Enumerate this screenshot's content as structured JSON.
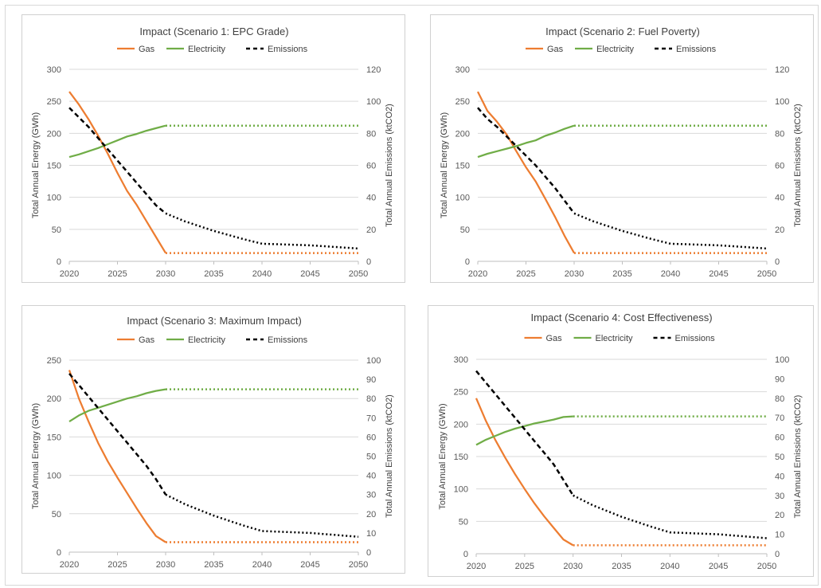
{
  "colors": {
    "gas": "#ED7D31",
    "electricity": "#70AD47",
    "emissions": "#000000",
    "gridline": "#d9d9d9"
  },
  "chart_data": [
    {
      "type": "line",
      "title": "Impact (Scenario 1: EPC Grade)",
      "xlabel": "",
      "ylabel": "Total Annual Energy (GWh)",
      "y2label": "Total Annual Emissions (ktCO2)",
      "xlim": [
        2020,
        2050
      ],
      "xticks": [
        2020,
        2025,
        2030,
        2035,
        2040,
        2045,
        2050
      ],
      "ylim": [
        0,
        300
      ],
      "yticks": [
        0,
        50,
        100,
        150,
        200,
        250,
        300
      ],
      "y2lim": [
        0,
        120
      ],
      "y2ticks": [
        0,
        20,
        40,
        60,
        80,
        100,
        120
      ],
      "legend_position": "top",
      "grid": "horizontal",
      "series": [
        {
          "name": "Gas",
          "axis": "left",
          "color": "#ED7D31",
          "style": "solid-then-dotted",
          "x": [
            2020,
            2021,
            2022,
            2023,
            2024,
            2025,
            2026,
            2027,
            2028,
            2029,
            2030,
            2035,
            2040,
            2045,
            2050
          ],
          "y": [
            265,
            245,
            222,
            196,
            168,
            138,
            110,
            88,
            63,
            38,
            13,
            13,
            13,
            13,
            13
          ]
        },
        {
          "name": "Electricity",
          "axis": "left",
          "color": "#70AD47",
          "style": "solid-then-dotted",
          "x": [
            2020,
            2021,
            2022,
            2023,
            2024,
            2025,
            2026,
            2027,
            2028,
            2029,
            2030,
            2035,
            2040,
            2045,
            2050
          ],
          "y": [
            163,
            167,
            172,
            177,
            183,
            189,
            195,
            199,
            204,
            208,
            212,
            212,
            212,
            212,
            212
          ]
        },
        {
          "name": "Emissions",
          "axis": "right",
          "color": "#000000",
          "style": "dashed-then-dotted",
          "x": [
            2020,
            2021,
            2022,
            2023,
            2024,
            2025,
            2026,
            2027,
            2028,
            2029,
            2030,
            2032,
            2035,
            2038,
            2040,
            2045,
            2050
          ],
          "y": [
            96,
            90,
            84,
            77,
            70,
            63,
            56,
            49,
            42,
            35,
            30,
            25,
            19,
            14,
            11,
            10,
            8
          ]
        }
      ]
    },
    {
      "type": "line",
      "title": "Impact (Scenario 2: Fuel Poverty)",
      "xlabel": "",
      "ylabel": "Total Annual Energy (GWh)",
      "y2label": "Total Annual Emissions (ktCO2)",
      "xlim": [
        2020,
        2050
      ],
      "xticks": [
        2020,
        2025,
        2030,
        2035,
        2040,
        2045,
        2050
      ],
      "ylim": [
        0,
        300
      ],
      "yticks": [
        0,
        50,
        100,
        150,
        200,
        250,
        300
      ],
      "y2lim": [
        0,
        120
      ],
      "y2ticks": [
        0,
        20,
        40,
        60,
        80,
        100,
        120
      ],
      "legend_position": "top",
      "grid": "horizontal",
      "series": [
        {
          "name": "Gas",
          "axis": "left",
          "color": "#ED7D31",
          "style": "solid-then-dotted",
          "x": [
            2020,
            2021,
            2022,
            2023,
            2024,
            2025,
            2026,
            2027,
            2028,
            2029,
            2030,
            2035,
            2040,
            2045,
            2050
          ],
          "y": [
            265,
            235,
            218,
            198,
            172,
            147,
            125,
            98,
            70,
            40,
            13,
            13,
            13,
            13,
            13
          ]
        },
        {
          "name": "Electricity",
          "axis": "left",
          "color": "#70AD47",
          "style": "solid-then-dotted",
          "x": [
            2020,
            2021,
            2022,
            2023,
            2024,
            2025,
            2026,
            2027,
            2028,
            2029,
            2030,
            2035,
            2040,
            2045,
            2050
          ],
          "y": [
            163,
            168,
            172,
            176,
            180,
            185,
            189,
            196,
            201,
            207,
            212,
            212,
            212,
            212,
            212
          ]
        },
        {
          "name": "Emissions",
          "axis": "right",
          "color": "#000000",
          "style": "dashed-then-dotted",
          "x": [
            2020,
            2021,
            2022,
            2023,
            2024,
            2025,
            2026,
            2027,
            2028,
            2029,
            2030,
            2032,
            2035,
            2038,
            2040,
            2045,
            2050
          ],
          "y": [
            96,
            89,
            84,
            78,
            72,
            66,
            60,
            53,
            46,
            38,
            30,
            25,
            19,
            14,
            11,
            10,
            8
          ]
        }
      ]
    },
    {
      "type": "line",
      "title": "Impact (Scenario 3: Maximum Impact)",
      "xlabel": "",
      "ylabel": "Total Annual Energy (GWh)",
      "y2label": "Total Annual Emissions (ktCO2)",
      "xlim": [
        2020,
        2050
      ],
      "xticks": [
        2020,
        2025,
        2030,
        2035,
        2040,
        2045,
        2050
      ],
      "ylim": [
        0,
        250
      ],
      "yticks": [
        0,
        50,
        100,
        150,
        200,
        250
      ],
      "y2lim": [
        0,
        100
      ],
      "y2ticks": [
        0,
        10,
        20,
        30,
        40,
        50,
        60,
        70,
        80,
        90,
        100
      ],
      "legend_position": "top",
      "grid": "horizontal",
      "series": [
        {
          "name": "Gas",
          "axis": "left",
          "color": "#ED7D31",
          "style": "solid-then-dotted",
          "x": [
            2020,
            2021,
            2022,
            2023,
            2024,
            2025,
            2026,
            2027,
            2028,
            2029,
            2030,
            2035,
            2040,
            2045,
            2050
          ],
          "y": [
            237,
            200,
            170,
            142,
            118,
            97,
            77,
            57,
            38,
            21,
            13,
            13,
            13,
            13,
            13
          ]
        },
        {
          "name": "Electricity",
          "axis": "left",
          "color": "#70AD47",
          "style": "solid-then-dotted",
          "x": [
            2020,
            2021,
            2022,
            2023,
            2024,
            2025,
            2026,
            2027,
            2028,
            2029,
            2030,
            2035,
            2040,
            2045,
            2050
          ],
          "y": [
            170,
            178,
            184,
            188,
            192,
            196,
            200,
            203,
            207,
            210,
            212,
            212,
            212,
            212,
            212
          ]
        },
        {
          "name": "Emissions",
          "axis": "right",
          "color": "#000000",
          "style": "dashed-then-dotted",
          "x": [
            2020,
            2021,
            2022,
            2023,
            2024,
            2025,
            2026,
            2027,
            2028,
            2029,
            2030,
            2032,
            2035,
            2038,
            2040,
            2045,
            2050
          ],
          "y": [
            93,
            87,
            81,
            75,
            69,
            63,
            57,
            51,
            45,
            38,
            30,
            25,
            19,
            14,
            11,
            10,
            8
          ]
        }
      ]
    },
    {
      "type": "line",
      "title": "Impact (Scenario 4: Cost Effectiveness)",
      "xlabel": "",
      "ylabel": "Total Annual Energy (GWh)",
      "y2label": "Total Annual Emissions (ktCO2)",
      "xlim": [
        2020,
        2050
      ],
      "xticks": [
        2020,
        2025,
        2030,
        2035,
        2040,
        2045,
        2050
      ],
      "ylim": [
        0,
        300
      ],
      "yticks": [
        0,
        50,
        100,
        150,
        200,
        250,
        300
      ],
      "y2lim": [
        0,
        100
      ],
      "y2ticks": [
        0,
        10,
        20,
        30,
        40,
        50,
        60,
        70,
        80,
        90,
        100
      ],
      "legend_position": "top",
      "grid": "horizontal",
      "series": [
        {
          "name": "Gas",
          "axis": "left",
          "color": "#ED7D31",
          "style": "solid-then-dotted",
          "x": [
            2020,
            2021,
            2022,
            2023,
            2024,
            2025,
            2026,
            2027,
            2028,
            2029,
            2030,
            2035,
            2040,
            2045,
            2050
          ],
          "y": [
            240,
            205,
            175,
            148,
            123,
            100,
            78,
            58,
            40,
            22,
            13,
            13,
            13,
            13,
            13
          ]
        },
        {
          "name": "Electricity",
          "axis": "left",
          "color": "#70AD47",
          "style": "solid-then-dotted",
          "x": [
            2020,
            2021,
            2022,
            2023,
            2024,
            2025,
            2026,
            2027,
            2028,
            2029,
            2030,
            2035,
            2040,
            2045,
            2050
          ],
          "y": [
            168,
            176,
            182,
            188,
            193,
            197,
            201,
            204,
            207,
            211,
            212,
            212,
            212,
            212,
            212
          ]
        },
        {
          "name": "Emissions",
          "axis": "right",
          "color": "#000000",
          "style": "dashed-then-dotted",
          "x": [
            2020,
            2021,
            2022,
            2023,
            2024,
            2025,
            2026,
            2027,
            2028,
            2029,
            2030,
            2032,
            2035,
            2038,
            2040,
            2045,
            2050
          ],
          "y": [
            94,
            88,
            82,
            76,
            70,
            64,
            58,
            52,
            46,
            38,
            30,
            25,
            19,
            14,
            11,
            10,
            8
          ]
        }
      ]
    }
  ]
}
